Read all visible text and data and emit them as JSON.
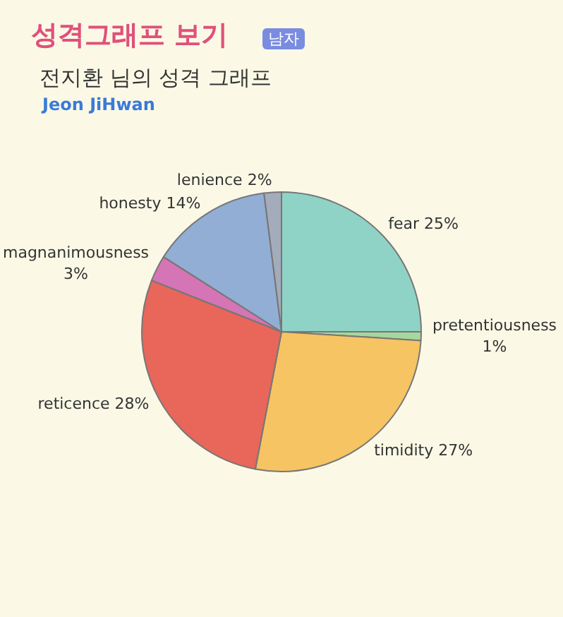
{
  "chart_data": {
    "type": "pie",
    "title": "성격그래프 보기",
    "subtitle": "전지환 님의 성격 그래프",
    "annotations": [
      "남자",
      "Jeon JiHwan"
    ],
    "categories": [
      "fear",
      "pretentiousness",
      "timidity",
      "reticence",
      "magnanimousness",
      "honesty",
      "lenience"
    ],
    "values": [
      25,
      1,
      27,
      28,
      3,
      14,
      2
    ],
    "value_labels": [
      "25%",
      "1%",
      "27%",
      "28%",
      "3%",
      "14%",
      "2%"
    ],
    "colors": [
      "#8fd3c6",
      "#a6d89c",
      "#f6c462",
      "#e8665a",
      "#d575b5",
      "#93aed4",
      "#a4abbb"
    ],
    "legend": false
  }
}
